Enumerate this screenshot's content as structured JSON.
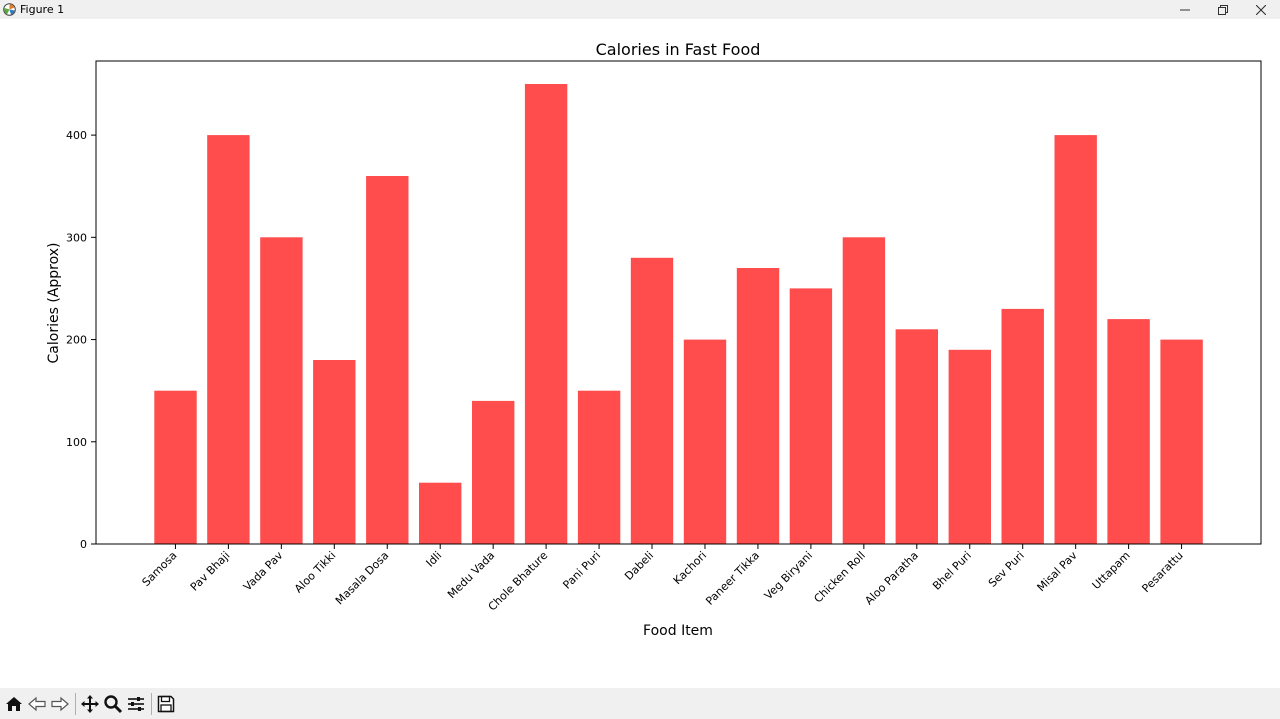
{
  "window": {
    "title": "Figure 1"
  },
  "toolbar": {
    "tools": [
      "home-icon",
      "back-icon",
      "forward-icon",
      "pan-icon",
      "zoom-icon",
      "configure-icon",
      "save-icon"
    ]
  },
  "colors": {
    "bar": "#ff4d4d",
    "axis": "#000000"
  },
  "chart_data": {
    "type": "bar",
    "title": "Calories in Fast Food",
    "xlabel": "Food Item",
    "ylabel": "Calories (Approx)",
    "ylim": [
      0,
      472.5
    ],
    "yticks": [
      0,
      100,
      200,
      300,
      400
    ],
    "grid": false,
    "categories": [
      "Samosa",
      "Pav Bhaji",
      "Vada Pav",
      "Aloo Tikki",
      "Masala Dosa",
      "Idli",
      "Medu Vada",
      "Chole Bhature",
      "Pani Puri",
      "Dabeli",
      "Kachori",
      "Paneer Tikka",
      "Veg Biryani",
      "Chicken Roll",
      "Aloo Paratha",
      "Bhel Puri",
      "Sev Puri",
      "Misal Pav",
      "Uttapam",
      "Pesarattu"
    ],
    "values": [
      150,
      400,
      300,
      180,
      360,
      60,
      140,
      450,
      150,
      280,
      200,
      270,
      250,
      300,
      210,
      190,
      230,
      400,
      220,
      200
    ]
  }
}
